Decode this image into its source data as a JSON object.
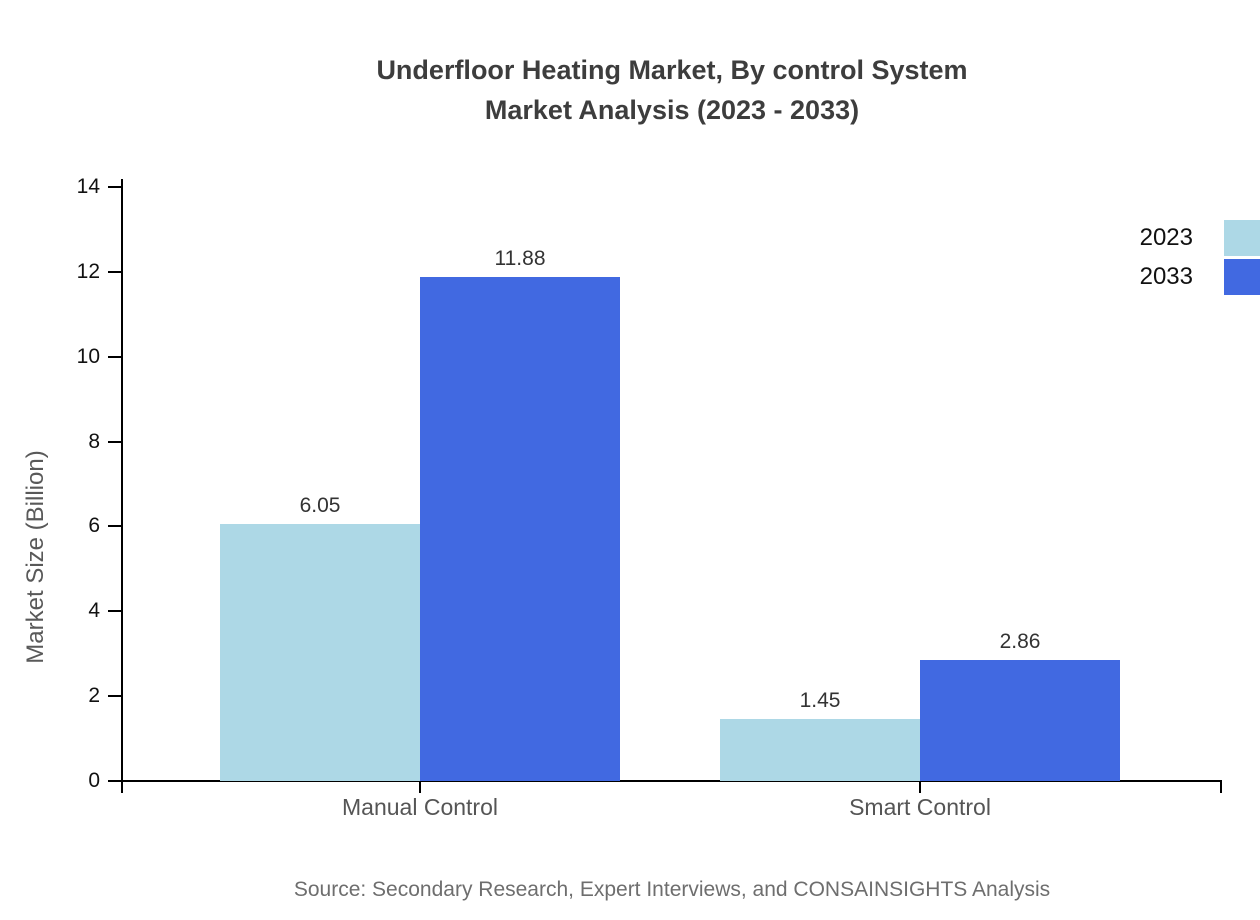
{
  "chart_data": {
    "type": "bar",
    "title": "Underfloor Heating Market, By control System Market Analysis (2023 - 2033)",
    "title_lines": [
      "Underfloor Heating Market, By control System",
      "Market Analysis (2023 - 2033)"
    ],
    "categories": [
      "Manual Control",
      "Smart Control"
    ],
    "series": [
      {
        "name": "2023",
        "color": "#ADD8E6",
        "values": [
          6.05,
          1.45
        ]
      },
      {
        "name": "2033",
        "color": "#4169E1",
        "values": [
          11.88,
          2.86
        ]
      }
    ],
    "value_label_format": "2dp",
    "xlabel": "",
    "ylabel": "Market Size (Billion)",
    "ylim": [
      0,
      14
    ],
    "yticks": [
      0,
      2,
      4,
      6,
      8,
      10,
      12,
      14
    ],
    "grid": false,
    "legend_position": "top-right",
    "axis_color": "#000000",
    "background_color": "#FFFFFF"
  },
  "source_note": "Source: Secondary Research, Expert Interviews, and CONSAINSIGHTS Analysis"
}
